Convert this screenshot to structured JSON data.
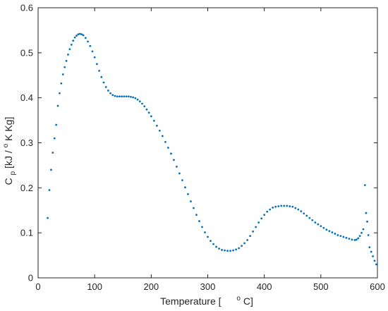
{
  "chart_data": {
    "type": "scatter",
    "title": "",
    "xlabel": {
      "prefix": "Temperature [",
      "sup": "o",
      "suffix": " C]"
    },
    "ylabel": {
      "main": "C",
      "sub": "p",
      "rest": " [kJ /",
      "sup": "o",
      "tail": "K Kg]"
    },
    "xlim": [
      0,
      600
    ],
    "ylim": [
      0,
      0.6
    ],
    "xticks": [
      "0",
      "100",
      "200",
      "300",
      "400",
      "500",
      "600"
    ],
    "yticks": [
      "0",
      "0.1",
      "0.2",
      "0.3",
      "0.4",
      "0.5",
      "0.6"
    ],
    "grid": false,
    "marker_color": "#0072BD",
    "series": [
      {
        "points": [
          [
            17,
            0.133
          ],
          [
            20,
            0.195
          ],
          [
            23,
            0.24
          ],
          [
            26,
            0.278
          ],
          [
            29,
            0.31
          ],
          [
            32,
            0.34
          ],
          [
            35,
            0.382
          ],
          [
            38,
            0.41
          ],
          [
            41,
            0.432
          ],
          [
            44,
            0.452
          ],
          [
            47,
            0.468
          ],
          [
            50,
            0.482
          ],
          [
            53,
            0.496
          ],
          [
            56,
            0.508
          ],
          [
            59,
            0.518
          ],
          [
            62,
            0.527
          ],
          [
            65,
            0.534
          ],
          [
            68,
            0.538
          ],
          [
            71,
            0.541
          ],
          [
            74,
            0.542
          ],
          [
            77,
            0.541
          ],
          [
            80,
            0.539
          ],
          [
            84,
            0.533
          ],
          [
            88,
            0.525
          ],
          [
            92,
            0.515
          ],
          [
            96,
            0.503
          ],
          [
            100,
            0.49
          ],
          [
            104,
            0.475
          ],
          [
            108,
            0.46
          ],
          [
            112,
            0.446
          ],
          [
            116,
            0.434
          ],
          [
            120,
            0.424
          ],
          [
            124,
            0.416
          ],
          [
            128,
            0.41
          ],
          [
            132,
            0.406
          ],
          [
            136,
            0.404
          ],
          [
            140,
            0.403
          ],
          [
            144,
            0.403
          ],
          [
            148,
            0.403
          ],
          [
            152,
            0.403
          ],
          [
            156,
            0.403
          ],
          [
            160,
            0.403
          ],
          [
            164,
            0.402
          ],
          [
            168,
            0.401
          ],
          [
            172,
            0.399
          ],
          [
            176,
            0.396
          ],
          [
            180,
            0.392
          ],
          [
            184,
            0.387
          ],
          [
            188,
            0.381
          ],
          [
            192,
            0.374
          ],
          [
            196,
            0.367
          ],
          [
            200,
            0.359
          ],
          [
            205,
            0.349
          ],
          [
            210,
            0.338
          ],
          [
            215,
            0.327
          ],
          [
            220,
            0.315
          ],
          [
            225,
            0.302
          ],
          [
            230,
            0.289
          ],
          [
            235,
            0.276
          ],
          [
            240,
            0.262
          ],
          [
            245,
            0.247
          ],
          [
            250,
            0.232
          ],
          [
            255,
            0.217
          ],
          [
            260,
            0.201
          ],
          [
            265,
            0.186
          ],
          [
            270,
            0.17
          ],
          [
            275,
            0.155
          ],
          [
            280,
            0.14
          ],
          [
            285,
            0.126
          ],
          [
            290,
            0.113
          ],
          [
            295,
            0.101
          ],
          [
            300,
            0.091
          ],
          [
            305,
            0.082
          ],
          [
            310,
            0.075
          ],
          [
            315,
            0.069
          ],
          [
            320,
            0.065
          ],
          [
            325,
            0.062
          ],
          [
            330,
            0.061
          ],
          [
            335,
            0.06
          ],
          [
            340,
            0.06
          ],
          [
            345,
            0.061
          ],
          [
            350,
            0.063
          ],
          [
            355,
            0.066
          ],
          [
            360,
            0.071
          ],
          [
            365,
            0.077
          ],
          [
            370,
            0.084
          ],
          [
            375,
            0.093
          ],
          [
            380,
            0.103
          ],
          [
            385,
            0.113
          ],
          [
            390,
            0.123
          ],
          [
            395,
            0.132
          ],
          [
            400,
            0.14
          ],
          [
            405,
            0.147
          ],
          [
            410,
            0.152
          ],
          [
            415,
            0.156
          ],
          [
            420,
            0.158
          ],
          [
            425,
            0.159
          ],
          [
            430,
            0.16
          ],
          [
            435,
            0.16
          ],
          [
            440,
            0.16
          ],
          [
            445,
            0.159
          ],
          [
            450,
            0.158
          ],
          [
            455,
            0.155
          ],
          [
            460,
            0.152
          ],
          [
            465,
            0.148
          ],
          [
            470,
            0.143
          ],
          [
            475,
            0.138
          ],
          [
            480,
            0.133
          ],
          [
            485,
            0.128
          ],
          [
            490,
            0.123
          ],
          [
            495,
            0.119
          ],
          [
            500,
            0.115
          ],
          [
            505,
            0.111
          ],
          [
            510,
            0.107
          ],
          [
            515,
            0.104
          ],
          [
            520,
            0.101
          ],
          [
            525,
            0.098
          ],
          [
            530,
            0.095
          ],
          [
            535,
            0.093
          ],
          [
            540,
            0.091
          ],
          [
            545,
            0.089
          ],
          [
            550,
            0.087
          ],
          [
            555,
            0.085
          ],
          [
            560,
            0.084
          ],
          [
            563,
            0.085
          ],
          [
            566,
            0.088
          ],
          [
            569,
            0.093
          ],
          [
            572,
            0.1
          ],
          [
            575,
            0.108
          ],
          [
            578,
            0.206
          ],
          [
            580,
            0.144
          ],
          [
            582,
            0.125
          ],
          [
            584,
            0.095
          ],
          [
            586,
            0.068
          ],
          [
            589,
            0.058
          ],
          [
            592,
            0.048
          ],
          [
            595,
            0.038
          ],
          [
            598,
            0.03
          ]
        ]
      }
    ]
  }
}
